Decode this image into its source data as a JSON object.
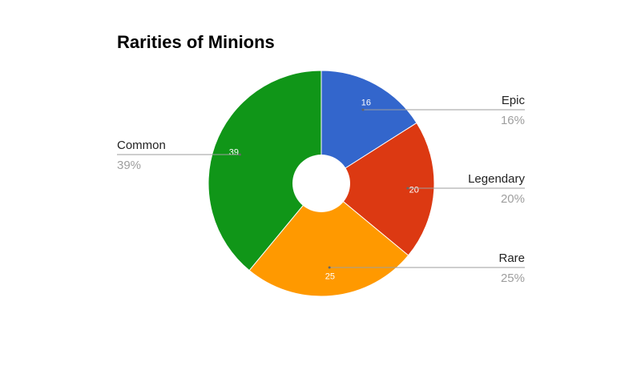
{
  "chart_data": {
    "type": "pie",
    "title": "Rarities of Minions",
    "donut": true,
    "slices": [
      {
        "name": "Epic",
        "value": 16,
        "percent": "16%",
        "color": "#3366cc"
      },
      {
        "name": "Legendary",
        "value": 20,
        "percent": "20%",
        "color": "#dc3912"
      },
      {
        "name": "Rare",
        "value": 25,
        "percent": "25%",
        "color": "#ff9900"
      },
      {
        "name": "Common",
        "value": 39,
        "percent": "39%",
        "color": "#109618"
      }
    ]
  }
}
